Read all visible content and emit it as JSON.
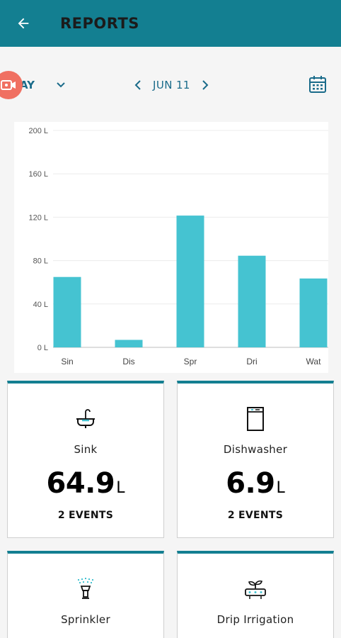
{
  "header": {
    "title": "REPORTS"
  },
  "toolbar": {
    "period": "AY",
    "date": "JUN 11"
  },
  "colors": {
    "appbar": "#137f91",
    "bar": "#45c3d1",
    "accent": "#1a6b8a",
    "record": "#f07062"
  },
  "chart_data": {
    "type": "bar",
    "categories": [
      "Sin",
      "Dis",
      "Spr",
      "Dri",
      "Wat"
    ],
    "values": [
      64.9,
      6.9,
      121.5,
      84.5,
      63.5
    ],
    "yticks": [
      "0 L",
      "40 L",
      "80 L",
      "120 L",
      "160 L",
      "200 L"
    ],
    "ylim": [
      0,
      200
    ],
    "grid": true
  },
  "cards": [
    {
      "name": "Sink",
      "value": "64.9",
      "unit": "L",
      "events": "2 EVENTS",
      "icon": "sink-icon"
    },
    {
      "name": "Dishwasher",
      "value": "6.9",
      "unit": "L",
      "events": "2 EVENTS",
      "icon": "dishwasher-icon"
    },
    {
      "name": "Sprinkler",
      "icon": "sprinkler-icon"
    },
    {
      "name": "Drip Irrigation",
      "icon": "drip-irrigation-icon"
    }
  ]
}
